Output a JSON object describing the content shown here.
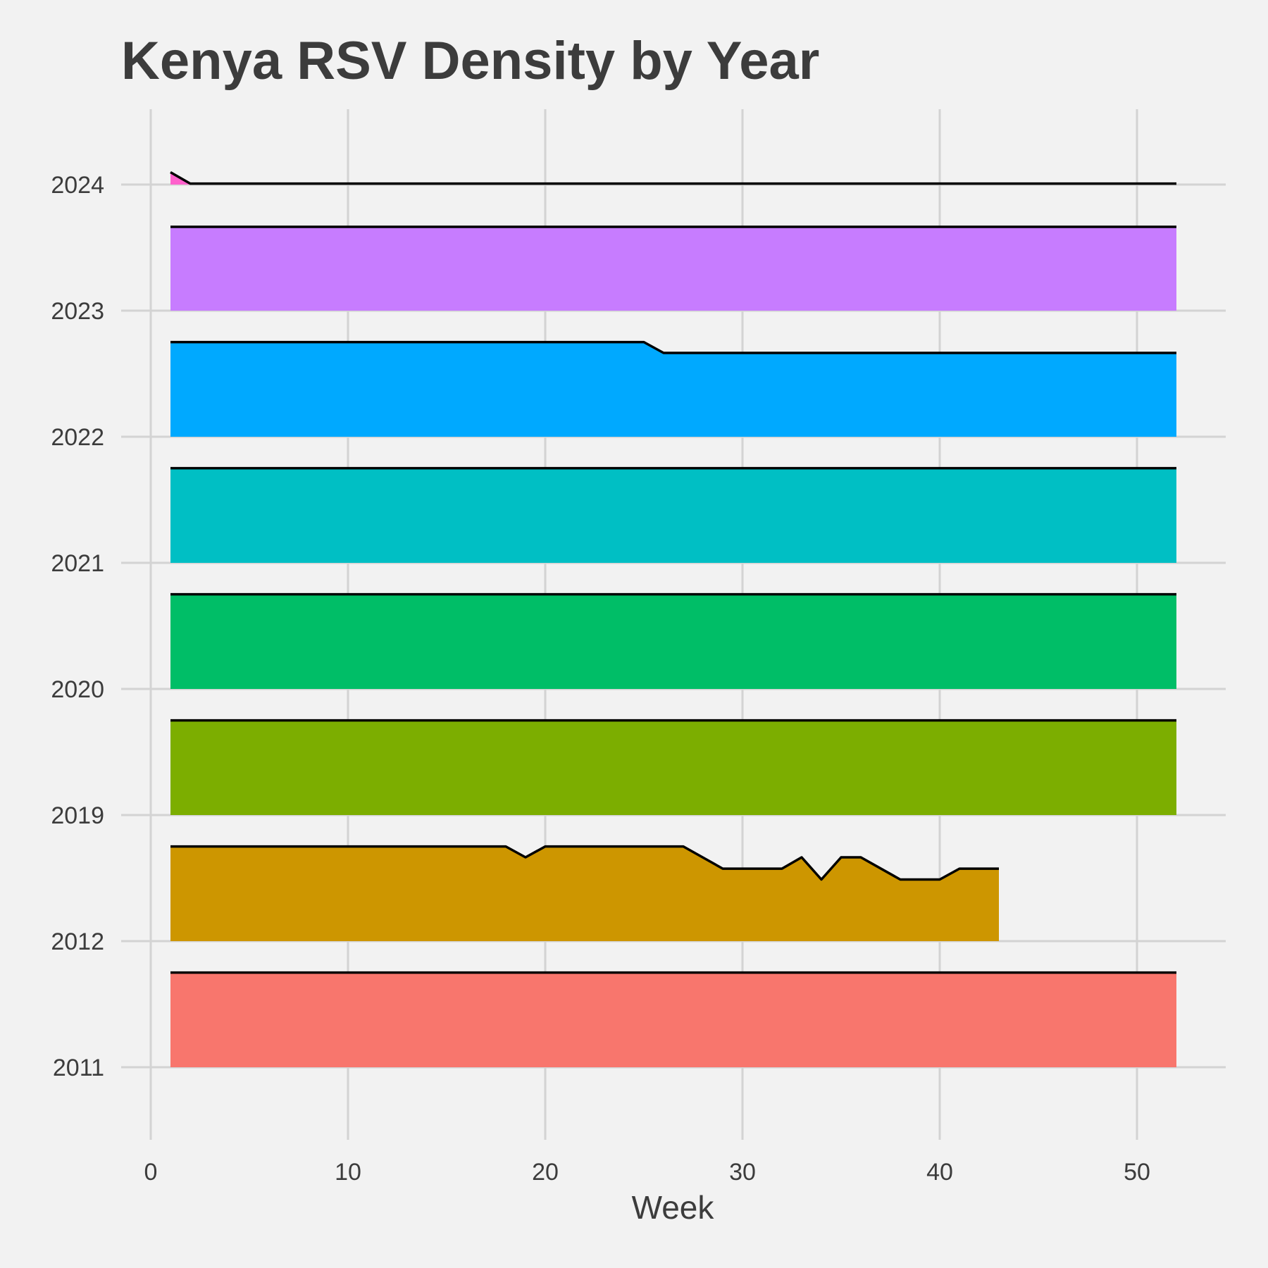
{
  "chart_data": {
    "type": "area",
    "subtype": "ridgeline",
    "title": "Kenya RSV Density by Year",
    "xlabel": "Week",
    "ylabel": "",
    "xlim": [
      0,
      54
    ],
    "xticks": [
      0,
      10,
      20,
      30,
      40,
      50
    ],
    "grid": true,
    "legend": "none",
    "categories": [
      "2011",
      "2012",
      "2019",
      "2020",
      "2021",
      "2022",
      "2023",
      "2024"
    ],
    "series": [
      {
        "color": "#F8766D",
        "x": [
          1,
          52
        ],
        "density": [
          0.0192,
          0.0192
        ]
      },
      {
        "color": "#CD9600",
        "x": [
          1,
          18,
          19,
          20,
          27,
          29,
          32,
          33,
          34,
          35,
          36,
          38,
          40,
          41,
          43
        ],
        "density": [
          0.0192,
          0.0192,
          0.017,
          0.0192,
          0.0192,
          0.0147,
          0.0147,
          0.017,
          0.0125,
          0.017,
          0.017,
          0.0125,
          0.0125,
          0.0147,
          0.0147
        ]
      },
      {
        "color": "#7CAE00",
        "x": [
          1,
          52
        ],
        "density": [
          0.0192,
          0.0192
        ]
      },
      {
        "color": "#00BE67",
        "x": [
          1,
          52
        ],
        "density": [
          0.0192,
          0.0192
        ]
      },
      {
        "color": "#00BFC4",
        "x": [
          1,
          52
        ],
        "density": [
          0.0192,
          0.0192
        ]
      },
      {
        "color": "#00A9FF",
        "x": [
          1,
          25,
          26,
          52
        ],
        "density": [
          0.0192,
          0.0192,
          0.017,
          0.017
        ]
      },
      {
        "color": "#C77CFF",
        "x": [
          1,
          52
        ],
        "density": [
          0.017,
          0.017
        ]
      },
      {
        "color": "#FF61CC",
        "x": [
          1,
          2,
          52
        ],
        "density": [
          0.0025,
          0.0002,
          0.0002
        ]
      }
    ]
  }
}
